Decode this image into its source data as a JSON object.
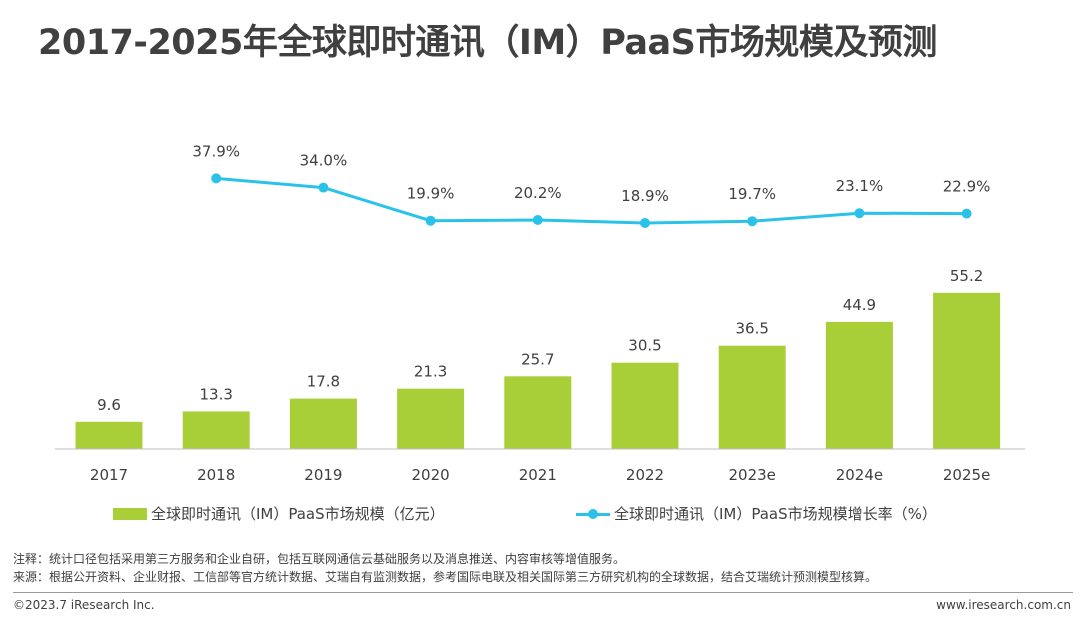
{
  "title": "2017-2025年全球即时通讯（IM）PaaS市场规模及预测",
  "chart_data": {
    "type": "bar",
    "categories": [
      "2017",
      "2018",
      "2019",
      "2020",
      "2021",
      "2022",
      "2023e",
      "2024e",
      "2025e"
    ],
    "series": [
      {
        "name": "全球即时通讯（IM）PaaS市场规模（亿元）",
        "type": "bar",
        "color": "#a9cf38",
        "values": [
          9.6,
          13.3,
          17.8,
          21.3,
          25.7,
          30.5,
          36.5,
          44.9,
          55.2
        ],
        "labels": [
          "9.6",
          "13.3",
          "17.8",
          "21.3",
          "25.7",
          "30.5",
          "36.5",
          "44.9",
          "55.2"
        ]
      },
      {
        "name": "全球即时通讯（IM）PaaS市场规模增长率（%）",
        "type": "line",
        "color": "#2bc2e9",
        "values": [
          null,
          37.9,
          34.0,
          19.9,
          20.2,
          18.9,
          19.7,
          23.1,
          22.9
        ],
        "labels": [
          "",
          "37.9%",
          "34.0%",
          "19.9%",
          "20.2%",
          "18.9%",
          "19.7%",
          "23.1%",
          "22.9%"
        ]
      }
    ],
    "legend_position": "bottom",
    "grid": false
  },
  "legend": {
    "bar_label": "全球即时通讯（IM）PaaS市场规模（亿元）",
    "line_label": "全球即时通讯（IM）PaaS市场规模增长率（%）"
  },
  "notes": {
    "note": "注释：统计口径包括采用第三方服务和企业自研，包括互联网通信云基础服务以及消息推送、内容审核等增值服务。",
    "source": "来源：根据公开资料、企业财报、工信部等官方统计数据、艾瑞自有监测数据，参考国际电联及相关国际第三方研究机构的全球数据，结合艾瑞统计预测模型核算。"
  },
  "footer": {
    "copyright": "©2023.7 iResearch Inc.",
    "website": "www.iresearch.com.cn"
  }
}
